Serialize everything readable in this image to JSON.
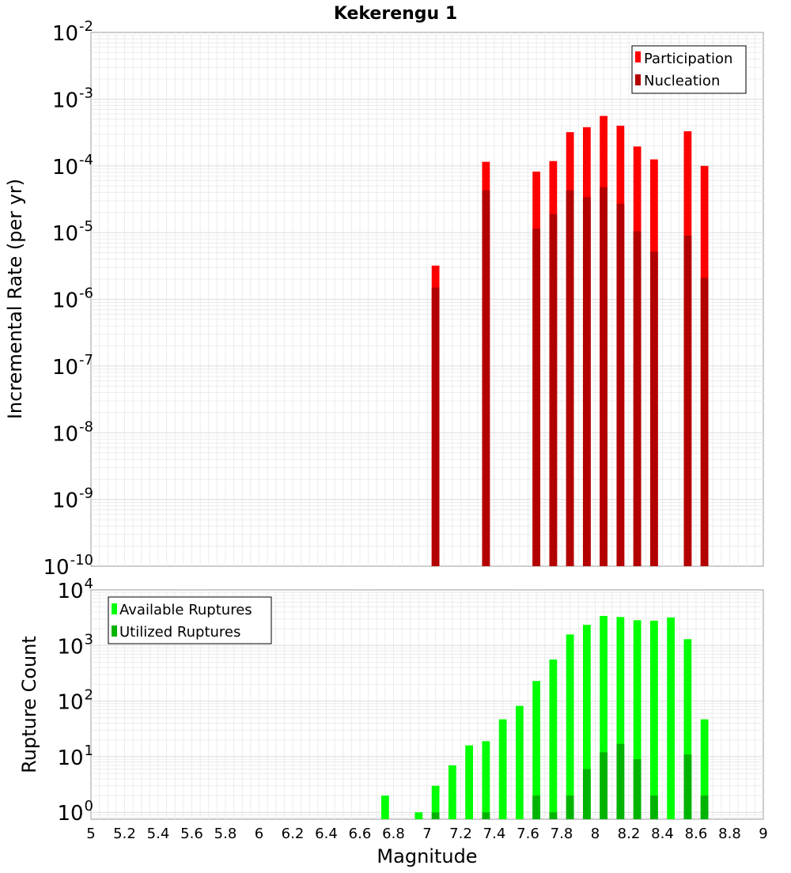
{
  "chart_data": [
    {
      "type": "bar",
      "title": "Kekerengu 1",
      "xlabel": "",
      "ylabel": "Incremental Rate (per yr)",
      "yscale": "log",
      "xlim": [
        5,
        9
      ],
      "ylim": [
        1e-10,
        0.01
      ],
      "ytick_exponents": [
        "-2",
        "-3",
        "-4",
        "-5",
        "-6",
        "-7",
        "-8",
        "-9",
        "-10"
      ],
      "grid": true,
      "legend_position": "top-right",
      "series": [
        {
          "name": "Participation",
          "color": "#ff0000",
          "x": [
            7.05,
            7.35,
            7.65,
            7.75,
            7.85,
            7.95,
            8.05,
            8.15,
            8.25,
            8.35,
            8.55,
            8.65
          ],
          "values": [
            3.2e-06,
            0.000115,
            8.2e-05,
            0.000118,
            0.00032,
            0.00038,
            0.00056,
            0.0004,
            0.000195,
            0.000125,
            0.00033,
            0.0001
          ]
        },
        {
          "name": "Nucleation",
          "color": "#b30000",
          "x": [
            7.05,
            7.35,
            7.65,
            7.75,
            7.85,
            7.95,
            8.05,
            8.15,
            8.25,
            8.35,
            8.55,
            8.65
          ],
          "values": [
            1.5e-06,
            4.3e-05,
            1.15e-05,
            1.9e-05,
            4.3e-05,
            3.4e-05,
            4.8e-05,
            2.7e-05,
            1.05e-05,
            5.2e-06,
            9e-06,
            2.1e-06
          ]
        }
      ]
    },
    {
      "type": "bar",
      "title": "",
      "xlabel": "Magnitude",
      "ylabel": "Rupture Count",
      "yscale": "log",
      "xlim": [
        5,
        9
      ],
      "ylim": [
        0.75,
        10000
      ],
      "ytick_exponents": [
        "4",
        "3",
        "2",
        "1",
        "0"
      ],
      "xtick_labels": [
        "5",
        "5.2",
        "5.4",
        "5.6",
        "5.8",
        "6",
        "6.2",
        "6.4",
        "6.6",
        "6.8",
        "7",
        "7.2",
        "7.4",
        "7.6",
        "7.8",
        "8",
        "8.2",
        "8.4",
        "8.6",
        "8.8",
        "9"
      ],
      "grid": true,
      "legend_position": "top-left",
      "series": [
        {
          "name": "Available Ruptures",
          "color": "#00ff00",
          "x": [
            6.75,
            6.95,
            7.05,
            7.15,
            7.25,
            7.35,
            7.45,
            7.55,
            7.65,
            7.75,
            7.85,
            7.95,
            8.05,
            8.15,
            8.25,
            8.35,
            8.45,
            8.55,
            8.65
          ],
          "values": [
            2,
            1,
            3,
            7,
            16,
            19,
            47,
            82,
            230,
            560,
            1580,
            2350,
            3400,
            3250,
            2850,
            2800,
            3200,
            1300,
            47
          ]
        },
        {
          "name": "Utilized Ruptures",
          "color": "#00b300",
          "x": [
            7.05,
            7.35,
            7.65,
            7.75,
            7.85,
            7.95,
            8.05,
            8.15,
            8.25,
            8.35,
            8.55,
            8.65
          ],
          "values": [
            1,
            1,
            2,
            1,
            2,
            6,
            12,
            17,
            9,
            2,
            11,
            2
          ]
        }
      ]
    }
  ]
}
